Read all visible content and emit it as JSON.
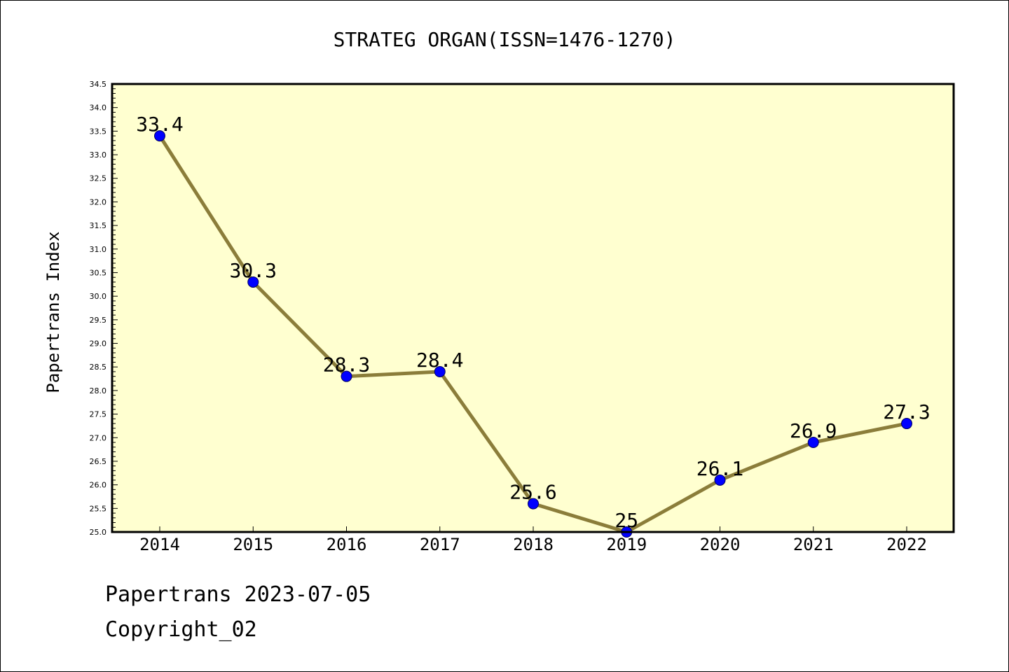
{
  "chart_data": {
    "type": "line",
    "title": "STRATEG ORGAN(ISSN=1476-1270)",
    "xlabel": "",
    "ylabel": "Papertrans Index",
    "categories": [
      "2014",
      "2015",
      "2016",
      "2017",
      "2018",
      "2019",
      "2020",
      "2021",
      "2022"
    ],
    "values": [
      33.4,
      30.3,
      28.3,
      28.4,
      25.6,
      25.0,
      26.1,
      26.9,
      27.3
    ],
    "data_labels": [
      "33.4",
      "30.3",
      "28.3",
      "28.4",
      "25.6",
      "25",
      "26.1",
      "26.9",
      "27.3"
    ],
    "ylim": [
      25.0,
      34.5
    ],
    "y_ticks": [
      "25.0",
      "25.5",
      "26.0",
      "26.5",
      "27.0",
      "27.5",
      "28.0",
      "28.5",
      "29.0",
      "29.5",
      "30.0",
      "30.5",
      "31.0",
      "31.5",
      "32.0",
      "32.5",
      "33.0",
      "33.5",
      "34.0",
      "34.5"
    ],
    "grid": false,
    "legend": "none",
    "colors": {
      "plot_background": "#ffffd0",
      "line": "#8b7d3a",
      "marker": "#0000ff",
      "axis": "#000000"
    }
  },
  "footer": {
    "line1": "Papertrans 2023-07-05",
    "line2": "Copyright_02"
  }
}
